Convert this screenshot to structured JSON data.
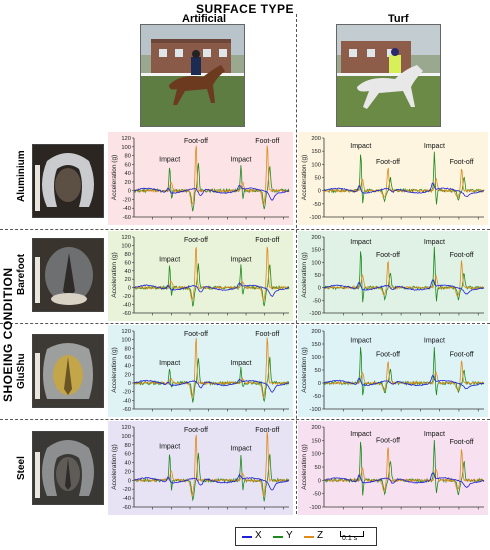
{
  "titles": {
    "surface_type": "SURFACE TYPE",
    "shoeing_condition": "SHOEING CONDITION",
    "col_artificial": "Artificial",
    "col_turf": "Turf"
  },
  "rows": [
    {
      "label": "Aluminium",
      "bg_left": "#fbe3e6",
      "bg_right": "#fdf5e0"
    },
    {
      "label": "Barefoot",
      "bg_left": "#e9f3d9",
      "bg_right": "#e0f2e6"
    },
    {
      "label": "GluShu",
      "bg_left": "#dff3f4",
      "bg_right": "#ddf3f6"
    },
    {
      "label": "Steel",
      "bg_left": "#e7e3f5",
      "bg_right": "#f7e1f0"
    }
  ],
  "y_axis_label": "Acceleration (g)",
  "annotations": {
    "impact": "Impact",
    "foot_off": "Foot-off"
  },
  "legend": {
    "x": "X",
    "y": "Y",
    "z": "Z",
    "scale": "0.1 s"
  },
  "colors": {
    "x": "#1f1fd6",
    "y": "#1e8a1e",
    "z": "#e08a1a"
  },
  "chart_data": [
    {
      "type": "line",
      "shoeing": "Aluminium",
      "surface": "Artificial",
      "ylim": [
        -60,
        120
      ],
      "yticks": [
        -60,
        -40,
        -20,
        0,
        20,
        40,
        60,
        80,
        100,
        120
      ],
      "ylabel": "Acceleration (g)",
      "series": [
        {
          "name": "X"
        },
        {
          "name": "Y"
        },
        {
          "name": "Z"
        }
      ],
      "peaks": [
        {
          "event": "Impact",
          "value": 60
        },
        {
          "event": "Foot-off",
          "value": 110
        },
        {
          "event": "Impact",
          "value": 60
        },
        {
          "event": "Foot-off",
          "value": 110
        }
      ]
    },
    {
      "type": "line",
      "shoeing": "Aluminium",
      "surface": "Turf",
      "ylim": [
        -100,
        200
      ],
      "yticks": [
        -100,
        -50,
        0,
        50,
        100,
        150,
        200
      ],
      "ylabel": "Acceleration (g)",
      "series": [
        {
          "name": "X"
        },
        {
          "name": "Y"
        },
        {
          "name": "Z"
        }
      ],
      "peaks": [
        {
          "event": "Impact",
          "value": 150
        },
        {
          "event": "Foot-off",
          "value": 90
        },
        {
          "event": "Impact",
          "value": 150
        },
        {
          "event": "Foot-off",
          "value": 90
        }
      ]
    },
    {
      "type": "line",
      "shoeing": "Barefoot",
      "surface": "Artificial",
      "ylim": [
        -60,
        120
      ],
      "yticks": [
        -60,
        -40,
        -20,
        0,
        20,
        40,
        60,
        80,
        100,
        120
      ],
      "ylabel": "Acceleration (g)",
      "series": [
        {
          "name": "X"
        },
        {
          "name": "Y"
        },
        {
          "name": "Z"
        }
      ],
      "peaks": [
        {
          "event": "Impact",
          "value": 55
        },
        {
          "event": "Foot-off",
          "value": 105
        },
        {
          "event": "Impact",
          "value": 55
        },
        {
          "event": "Foot-off",
          "value": 105
        }
      ]
    },
    {
      "type": "line",
      "shoeing": "Barefoot",
      "surface": "Turf",
      "ylim": [
        -100,
        200
      ],
      "yticks": [
        -100,
        -50,
        0,
        50,
        100,
        150,
        200
      ],
      "ylabel": "Acceleration (g)",
      "series": [
        {
          "name": "X"
        },
        {
          "name": "Y"
        },
        {
          "name": "Z"
        }
      ],
      "peaks": [
        {
          "event": "Impact",
          "value": 160
        },
        {
          "event": "Foot-off",
          "value": 110
        },
        {
          "event": "Impact",
          "value": 160
        },
        {
          "event": "Foot-off",
          "value": 110
        }
      ]
    },
    {
      "type": "line",
      "shoeing": "GluShu",
      "surface": "Artificial",
      "ylim": [
        -60,
        120
      ],
      "yticks": [
        -60,
        -40,
        -20,
        0,
        20,
        40,
        60,
        80,
        100,
        120
      ],
      "ylabel": "Acceleration (g)",
      "series": [
        {
          "name": "X"
        },
        {
          "name": "Y"
        },
        {
          "name": "Z"
        }
      ],
      "peaks": [
        {
          "event": "Impact",
          "value": 35
        },
        {
          "event": "Foot-off",
          "value": 110
        },
        {
          "event": "Impact",
          "value": 35
        },
        {
          "event": "Foot-off",
          "value": 110
        }
      ]
    },
    {
      "type": "line",
      "shoeing": "GluShu",
      "surface": "Turf",
      "ylim": [
        -100,
        200
      ],
      "yticks": [
        -100,
        -50,
        0,
        50,
        100,
        150,
        200
      ],
      "ylabel": "Acceleration (g)",
      "series": [
        {
          "name": "X"
        },
        {
          "name": "Y"
        },
        {
          "name": "Z"
        }
      ],
      "peaks": [
        {
          "event": "Impact",
          "value": 145
        },
        {
          "event": "Foot-off",
          "value": 90
        },
        {
          "event": "Impact",
          "value": 145
        },
        {
          "event": "Foot-off",
          "value": 90
        }
      ]
    },
    {
      "type": "line",
      "shoeing": "Steel",
      "surface": "Artificial",
      "ylim": [
        -60,
        120
      ],
      "yticks": [
        -60,
        -40,
        -20,
        0,
        20,
        40,
        60,
        80,
        100,
        120
      ],
      "ylabel": "Acceleration (g)",
      "series": [
        {
          "name": "X"
        },
        {
          "name": "Y"
        },
        {
          "name": "Z"
        }
      ],
      "peaks": [
        {
          "event": "Impact",
          "value": 65
        },
        {
          "event": "Foot-off",
          "value": 110
        },
        {
          "event": "Impact",
          "value": 60
        },
        {
          "event": "Foot-off",
          "value": 115
        }
      ]
    },
    {
      "type": "line",
      "shoeing": "Steel",
      "surface": "Turf",
      "ylim": [
        -100,
        200
      ],
      "yticks": [
        -100,
        -50,
        0,
        50,
        100,
        150,
        200
      ],
      "ylabel": "Acceleration (g)",
      "series": [
        {
          "name": "X"
        },
        {
          "name": "Y"
        },
        {
          "name": "Z"
        }
      ],
      "peaks": [
        {
          "event": "Impact",
          "value": 155
        },
        {
          "event": "Foot-off",
          "value": 130
        },
        {
          "event": "Impact",
          "value": 155
        },
        {
          "event": "Foot-off",
          "value": 125
        }
      ]
    }
  ]
}
